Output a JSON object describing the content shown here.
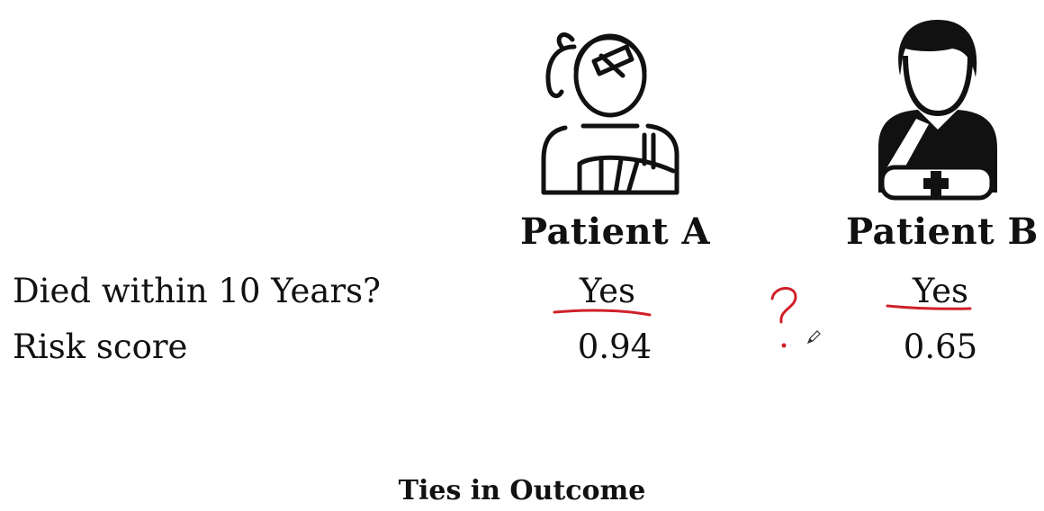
{
  "patients": [
    {
      "label": "Patient A",
      "icon": "patient-female-arm-sling-icon"
    },
    {
      "label": "Patient B",
      "icon": "patient-male-arm-sling-icon"
    }
  ],
  "rows": [
    {
      "label": "Died within 10 Years?",
      "values": [
        "Yes",
        "Yes"
      ]
    },
    {
      "label": "Risk score",
      "values": [
        "0.94",
        "0.65"
      ]
    }
  ],
  "annotation": {
    "mark": "?",
    "color": "#d0202a",
    "icon": "pen-cursor-icon"
  },
  "caption": "Ties in Outcome"
}
